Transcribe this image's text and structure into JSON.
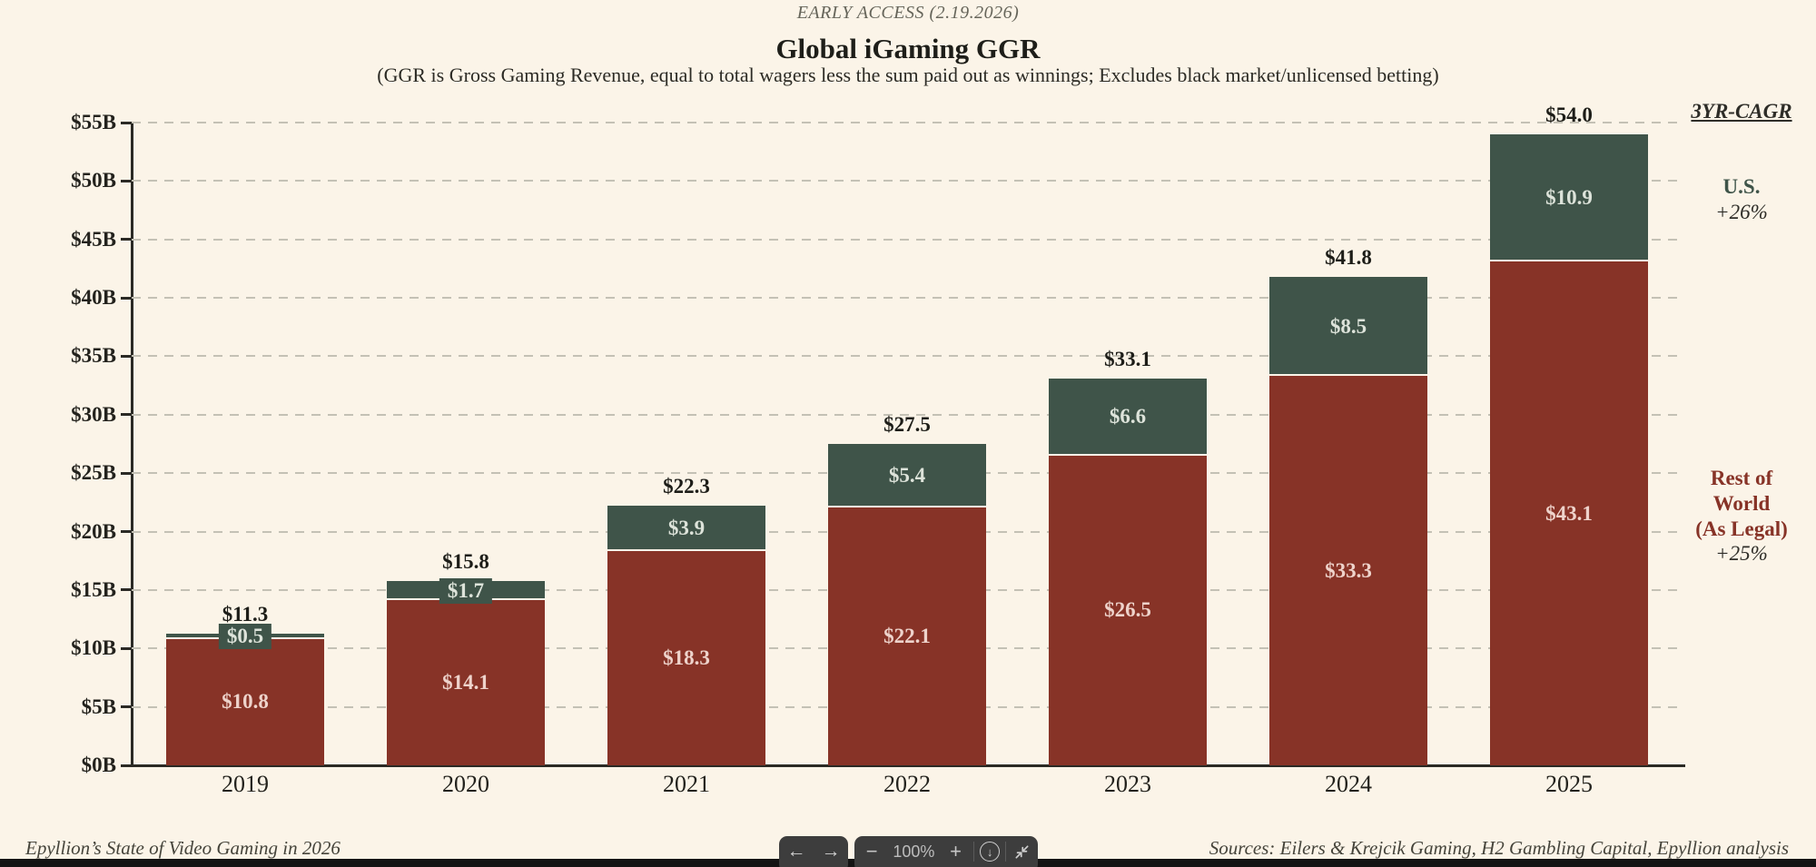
{
  "header": {
    "early_access": "EARLY ACCESS (2.19.2026)",
    "title": "Global iGaming GGR",
    "subtitle": "(GGR is Gross Gaming Revenue, equal to total wagers less the sum paid out as winnings; Excludes black market/unlicensed betting)"
  },
  "chart_data": {
    "type": "bar",
    "stacked": true,
    "title": "Global iGaming GGR",
    "ylabel": "",
    "xlabel": "",
    "ylim": [
      0,
      55
    ],
    "grid": "horizontal-dashed",
    "categories": [
      "2019",
      "2020",
      "2021",
      "2022",
      "2023",
      "2024",
      "2025"
    ],
    "series": [
      {
        "name": "Rest of World (As Legal)",
        "color": "#873327",
        "label_color": "#eed3cb",
        "values": [
          10.8,
          14.1,
          18.3,
          22.1,
          26.5,
          33.3,
          43.1
        ],
        "labels": [
          "$10.8",
          "$14.1",
          "$18.3",
          "$22.1",
          "$26.5",
          "$33.3",
          "$43.1"
        ]
      },
      {
        "name": "U.S.",
        "color": "#3f5449",
        "label_color": "#dde3da",
        "values": [
          0.5,
          1.7,
          3.9,
          5.4,
          6.6,
          8.5,
          10.9
        ],
        "labels": [
          "$0.5",
          "$1.7",
          "$3.9",
          "$5.4",
          "$6.6",
          "$8.5",
          "$10.9"
        ]
      }
    ],
    "totals": [
      11.3,
      15.8,
      22.3,
      27.5,
      33.1,
      41.8,
      54.0
    ],
    "total_labels": [
      "$11.3",
      "$15.8",
      "$22.3",
      "$27.5",
      "$33.1",
      "$41.8",
      "$54.0"
    ],
    "yticks": [
      {
        "value": 0,
        "label": "$0B"
      },
      {
        "value": 5,
        "label": "$5B"
      },
      {
        "value": 10,
        "label": "$10B"
      },
      {
        "value": 15,
        "label": "$15B"
      },
      {
        "value": 20,
        "label": "$20B"
      },
      {
        "value": 25,
        "label": "$25B"
      },
      {
        "value": 30,
        "label": "$30B"
      },
      {
        "value": 35,
        "label": "$35B"
      },
      {
        "value": 40,
        "label": "$40B"
      },
      {
        "value": 45,
        "label": "$45B"
      },
      {
        "value": 50,
        "label": "$50B"
      },
      {
        "value": 55,
        "label": "$55B"
      }
    ],
    "legend_position": "right"
  },
  "annotations": {
    "cagr_title": "3YR-CAGR",
    "us_label": "U.S.",
    "us_cagr": "+26%",
    "row_lines": [
      "Rest of",
      "World",
      "(As Legal)"
    ],
    "row_cagr": "+25%"
  },
  "footer": {
    "left": "Epyllion’s State of Video Gaming in 2026",
    "right": "Sources: Eilers & Krejcik Gaming, H2 Gambling Capital, Epyllion analysis"
  },
  "toolbar": {
    "back_icon": "←",
    "forward_icon": "→",
    "zoom_out_icon": "−",
    "zoom_level": "100%",
    "zoom_in_icon": "+",
    "download_icon": "↓"
  }
}
